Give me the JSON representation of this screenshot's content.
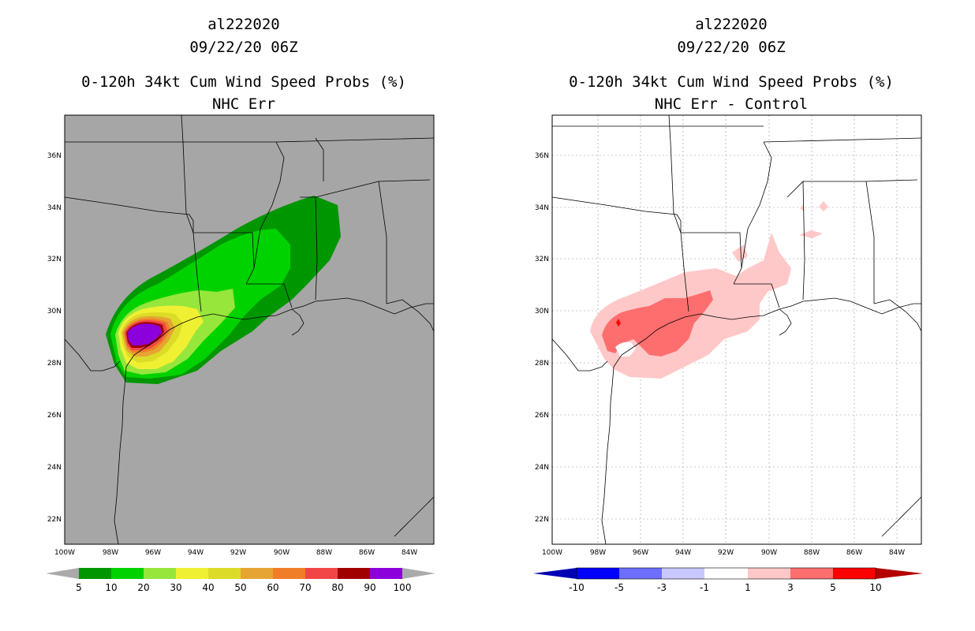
{
  "colors": {
    "land_left": "#a6a6a6",
    "ocean_left": "#a6a6a6",
    "background_right": "#ffffff",
    "coast": "#000000"
  },
  "left_panel": {
    "storm_id": "al222020",
    "datetime": "09/22/20 06Z",
    "product": "0-120h 34kt Cum Wind Speed Probs (%)",
    "subtitle": "NHC Err",
    "lat_labels": [
      "36N",
      "34N",
      "32N",
      "30N",
      "28N",
      "26N",
      "24N",
      "22N"
    ],
    "lon_labels": [
      "100W",
      "98W",
      "96W",
      "94W",
      "92W",
      "90W",
      "88W",
      "86W",
      "84W"
    ],
    "colorbar": {
      "labels": [
        "5",
        "10",
        "20",
        "30",
        "40",
        "50",
        "60",
        "70",
        "80",
        "90",
        "100"
      ],
      "colors": [
        "#009600",
        "#00d200",
        "#96e63c",
        "#f0f032",
        "#dcdc28",
        "#e6a532",
        "#f07d28",
        "#f04646",
        "#a00000",
        "#8c00dc"
      ]
    }
  },
  "right_panel": {
    "storm_id": "al222020",
    "datetime": "09/22/20 06Z",
    "product": "0-120h 34kt Cum Wind Speed Probs (%)",
    "subtitle": "NHC Err - Control",
    "lat_labels": [
      "36N",
      "34N",
      "32N",
      "30N",
      "28N",
      "26N",
      "24N",
      "22N"
    ],
    "lon_labels": [
      "100W",
      "98W",
      "96W",
      "94W",
      "92W",
      "90W",
      "88W",
      "86W",
      "84W"
    ],
    "colorbar": {
      "labels": [
        "-10",
        "-5",
        "-3",
        "-1",
        "1",
        "3",
        "5",
        "10"
      ],
      "colors": [
        "#0000b4",
        "#0000ff",
        "#6e6eff",
        "#c8c8ff",
        "#ffffff",
        "#ffc8c8",
        "#ff6e6e",
        "#ff0000",
        "#b40000"
      ]
    }
  }
}
